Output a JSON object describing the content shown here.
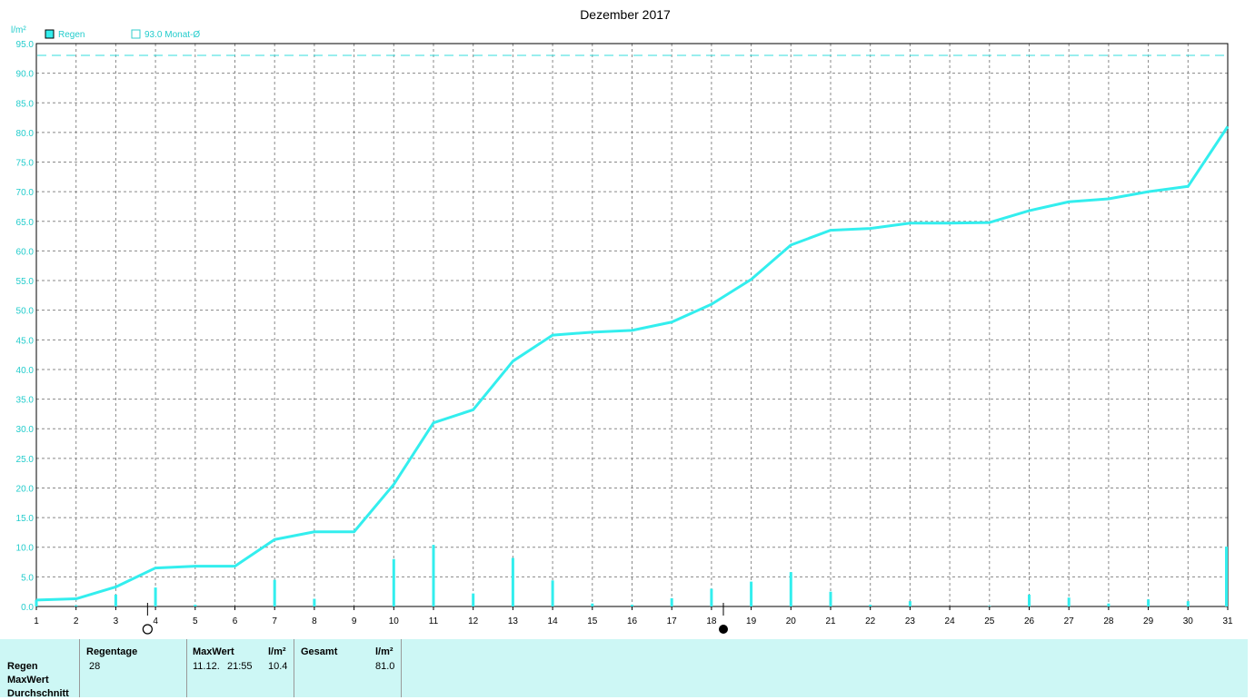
{
  "chart_data": {
    "type": "line",
    "title": "Dezember 2017",
    "ylabel": "l/m²",
    "ylim": [
      0,
      95
    ],
    "ytick_step": 5,
    "grid": true,
    "legend": [
      "Regen",
      "93.0 Monat-Ø"
    ],
    "reference_line": {
      "value": 93.0,
      "label": "93.0 Monat-Ø",
      "style": "dashed"
    },
    "x": [
      1,
      2,
      3,
      4,
      5,
      6,
      7,
      8,
      9,
      10,
      11,
      12,
      13,
      14,
      15,
      16,
      17,
      18,
      19,
      20,
      21,
      22,
      23,
      24,
      25,
      26,
      27,
      28,
      29,
      30,
      31
    ],
    "series": [
      {
        "name": "Regen",
        "kind": "cumulative-line",
        "values": [
          1.1,
          1.3,
          3.3,
          6.5,
          6.8,
          6.8,
          11.3,
          12.6,
          12.6,
          20.6,
          31.0,
          33.2,
          41.4,
          45.8,
          46.3,
          46.6,
          48.0,
          51.0,
          55.2,
          61.0,
          63.5,
          63.8,
          64.7,
          64.7,
          64.8,
          66.8,
          68.3,
          68.8,
          70.0,
          70.9,
          81.0
        ]
      },
      {
        "name": "Regen",
        "kind": "daily-bars",
        "values": [
          1.1,
          0.2,
          2.0,
          3.2,
          0.3,
          0,
          4.5,
          1.3,
          0,
          8.0,
          10.4,
          2.2,
          8.2,
          4.4,
          0.5,
          0.3,
          1.4,
          3.0,
          4.2,
          5.8,
          2.5,
          0.3,
          0.9,
          0,
          0.1,
          2.0,
          1.5,
          0.5,
          1.2,
          0.9,
          10.1
        ]
      }
    ],
    "moon_phases": [
      {
        "day": 3.8,
        "phase": "full"
      },
      {
        "day": 18.3,
        "phase": "new"
      }
    ]
  },
  "stats": {
    "row_labels": [
      "Regen",
      "MaxWert",
      "Durchschnitt"
    ],
    "regentage_header": "Regentage",
    "regentage_value": "28",
    "maxwert_header": "MaxWert",
    "maxwert_unit": "l/m²",
    "maxwert_date": "11.12.",
    "maxwert_time": "21:55",
    "maxwert_value": "10.4",
    "gesamt_header": "Gesamt",
    "gesamt_unit": "l/m²",
    "gesamt_value": "81.0"
  },
  "colors": {
    "series": "#33eeee",
    "reference": "#33dddd",
    "grid": "#888888",
    "text_series": "#22cccc",
    "panel": "#cdf7f5"
  }
}
